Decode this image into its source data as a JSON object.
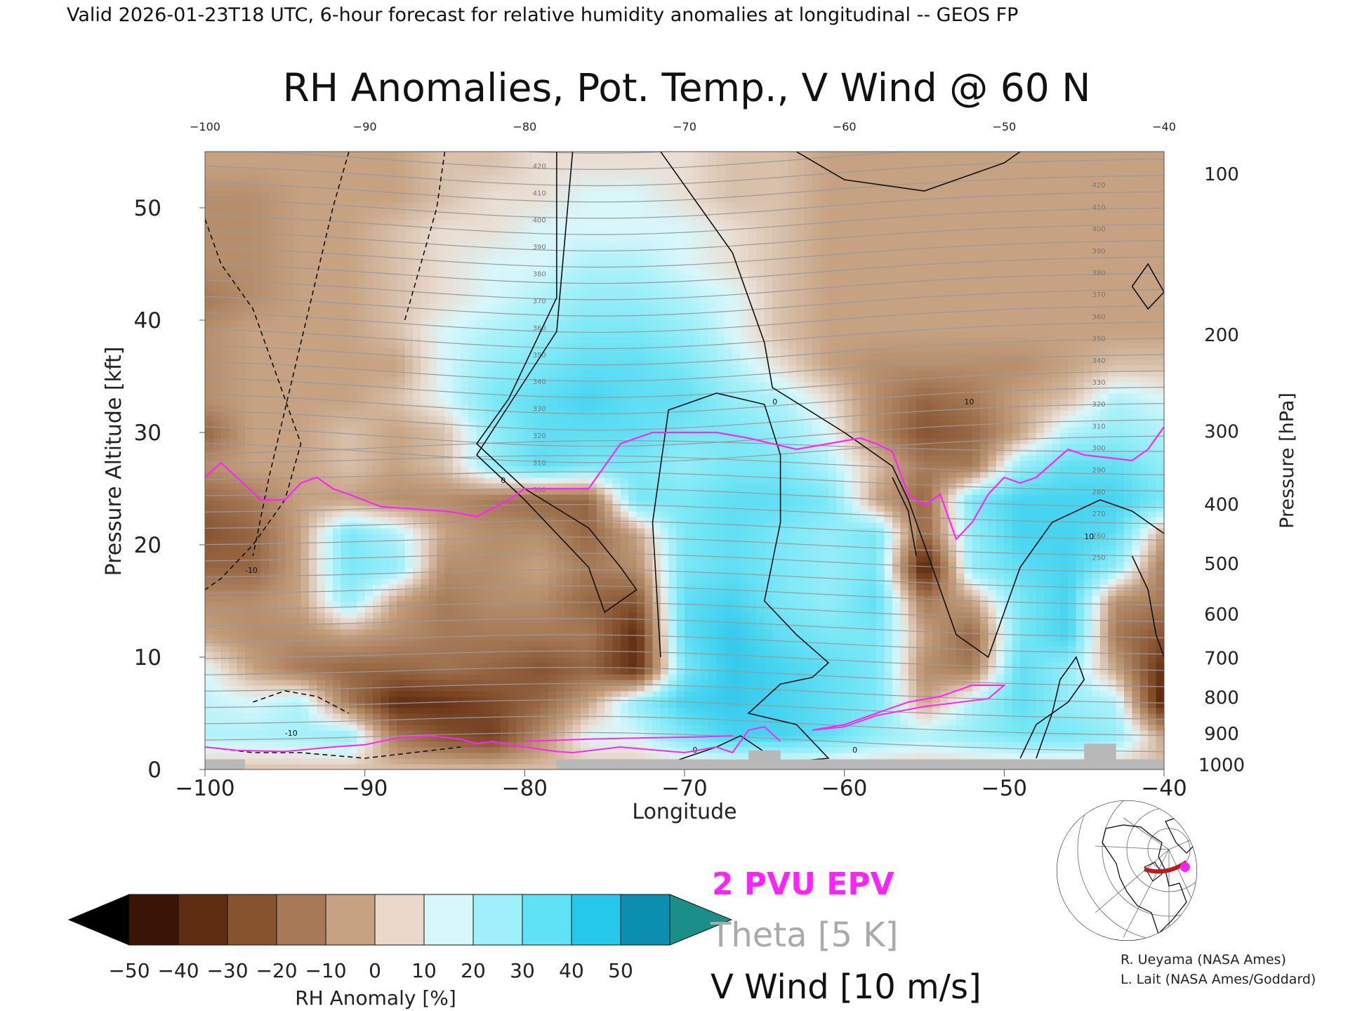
{
  "header": {
    "valid_line": "Valid 2026-01-23T18 UTC, 6-hour forecast for relative humidity anomalies at longitudinal -- GEOS FP"
  },
  "chart_data": {
    "type": "heatmap",
    "title": "RH Anomalies, Pot. Temp., V Wind @ 60 N",
    "xlabel": "Longitude",
    "ylabel_left": "Pressure Altitude [kft]",
    "ylabel_right": "Pressure [hPa]",
    "xlim": [
      -100,
      -40
    ],
    "ylim": [
      0,
      55
    ],
    "x_ticks": [
      "−100",
      "−90",
      "−80",
      "−70",
      "−60",
      "−50",
      "−40"
    ],
    "x_tick_values": [
      -100,
      -90,
      -80,
      -70,
      -60,
      -50,
      -40
    ],
    "x_top_ticks": [
      "−100",
      "−90",
      "−80",
      "−70",
      "−60",
      "−50",
      "−40"
    ],
    "y_ticks": [
      "0",
      "10",
      "20",
      "30",
      "40",
      "50"
    ],
    "y_tick_values": [
      0,
      10,
      20,
      30,
      40,
      50
    ],
    "pressure_ticks": [
      {
        "label": "100",
        "kft": 53.0
      },
      {
        "label": "200",
        "kft": 38.7
      },
      {
        "label": "300",
        "kft": 30.1
      },
      {
        "label": "400",
        "kft": 23.6
      },
      {
        "label": "500",
        "kft": 18.3
      },
      {
        "label": "600",
        "kft": 13.8
      },
      {
        "label": "700",
        "kft": 9.9
      },
      {
        "label": "800",
        "kft": 6.4
      },
      {
        "label": "900",
        "kft": 3.2
      },
      {
        "label": "1000",
        "kft": 0.4
      }
    ],
    "rh_anomaly_field": {
      "x": [
        -100,
        -97,
        -94,
        -91,
        -88,
        -85,
        -82,
        -79,
        -76,
        -73,
        -70,
        -67,
        -64,
        -61,
        -58,
        -55,
        -52,
        -49,
        -46,
        -43,
        -40
      ],
      "y": [
        0,
        3,
        6,
        9,
        12,
        15,
        18,
        21,
        24,
        27,
        30,
        33,
        36,
        39,
        42,
        45,
        48,
        51,
        54
      ],
      "values": [
        [
          -5,
          -5,
          -5,
          -5,
          -5,
          -5,
          -5,
          -5,
          -5,
          -5,
          -5,
          -5,
          -5,
          -5,
          -5,
          -5,
          -5,
          -5,
          -5,
          -5,
          -5
        ],
        [
          10,
          10,
          12,
          15,
          -20,
          -30,
          -35,
          -15,
          5,
          5,
          20,
          30,
          30,
          25,
          15,
          10,
          15,
          20,
          20,
          15,
          -10
        ],
        [
          8,
          5,
          10,
          -20,
          -40,
          -38,
          -32,
          -25,
          -10,
          15,
          30,
          35,
          30,
          25,
          20,
          -10,
          10,
          25,
          15,
          10,
          -45
        ],
        [
          5,
          -10,
          -20,
          -25,
          -25,
          -22,
          -25,
          -30,
          -25,
          -40,
          20,
          35,
          30,
          25,
          20,
          -15,
          -20,
          25,
          15,
          -10,
          -40
        ],
        [
          -10,
          -15,
          -15,
          -10,
          -15,
          -20,
          -20,
          -20,
          -20,
          -40,
          25,
          35,
          25,
          20,
          20,
          -10,
          -25,
          20,
          30,
          -20,
          -30
        ],
        [
          -15,
          -15,
          -10,
          15,
          -10,
          -20,
          -15,
          -15,
          -25,
          -30,
          25,
          30,
          20,
          15,
          25,
          -20,
          -10,
          20,
          30,
          -15,
          -20
        ],
        [
          -25,
          -25,
          -10,
          20,
          15,
          -15,
          -15,
          -10,
          -20,
          -15,
          20,
          25,
          20,
          15,
          20,
          -45,
          15,
          25,
          30,
          15,
          -20
        ],
        [
          -30,
          -25,
          -10,
          20,
          10,
          -10,
          -15,
          -15,
          -25,
          -10,
          20,
          25,
          20,
          15,
          20,
          -25,
          15,
          30,
          30,
          25,
          -10
        ],
        [
          -25,
          -20,
          -10,
          -10,
          -15,
          -15,
          -20,
          -25,
          -25,
          20,
          20,
          25,
          25,
          20,
          -10,
          -25,
          20,
          30,
          30,
          30,
          20
        ],
        [
          -15,
          -10,
          -10,
          -5,
          -10,
          -5,
          15,
          25,
          20,
          20,
          15,
          20,
          20,
          10,
          -5,
          -20,
          -20,
          15,
          25,
          25,
          15
        ],
        [
          -25,
          -10,
          -10,
          -5,
          -10,
          -5,
          15,
          25,
          25,
          25,
          20,
          20,
          15,
          5,
          -15,
          -30,
          -25,
          -10,
          10,
          15,
          10
        ],
        [
          -15,
          -10,
          -10,
          -10,
          -5,
          5,
          20,
          25,
          30,
          25,
          25,
          15,
          10,
          0,
          -15,
          -25,
          -20,
          -10,
          -5,
          10,
          5
        ],
        [
          -15,
          -10,
          -10,
          -10,
          -10,
          5,
          15,
          20,
          25,
          25,
          20,
          10,
          0,
          -10,
          -15,
          -15,
          -15,
          -15,
          -10,
          -5,
          -5
        ],
        [
          -15,
          -10,
          -10,
          -10,
          -5,
          5,
          10,
          15,
          20,
          20,
          15,
          5,
          -5,
          -10,
          -10,
          -10,
          -10,
          -10,
          -10,
          -10,
          -10
        ],
        [
          -20,
          -15,
          -10,
          -10,
          -5,
          0,
          5,
          10,
          15,
          15,
          10,
          5,
          -5,
          -10,
          -10,
          -10,
          -10,
          -10,
          -10,
          -10,
          -10
        ],
        [
          -15,
          -15,
          -10,
          -10,
          -5,
          0,
          5,
          5,
          10,
          10,
          5,
          0,
          -5,
          -10,
          -10,
          -10,
          -10,
          -10,
          -10,
          -10,
          -10
        ],
        [
          -15,
          -15,
          -10,
          -10,
          -5,
          0,
          0,
          5,
          5,
          5,
          5,
          0,
          -5,
          -10,
          -10,
          -10,
          -10,
          -10,
          -10,
          -10,
          -10
        ],
        [
          -15,
          -15,
          -10,
          -10,
          -10,
          -5,
          0,
          0,
          5,
          5,
          0,
          -5,
          -5,
          -10,
          -10,
          -10,
          -10,
          -10,
          -10,
          -10,
          -10
        ],
        [
          -10,
          -10,
          -10,
          -10,
          -10,
          -5,
          -5,
          0,
          0,
          0,
          0,
          -5,
          -5,
          -10,
          -10,
          -10,
          -10,
          -10,
          -10,
          -10,
          -10
        ]
      ]
    },
    "epv_2pvu_line": [
      [
        -100,
        26
      ],
      [
        -99,
        27.3
      ],
      [
        -98,
        26
      ],
      [
        -96.5,
        24
      ],
      [
        -95,
        24
      ],
      [
        -94,
        25.5
      ],
      [
        -93,
        26
      ],
      [
        -92,
        25
      ],
      [
        -91,
        24.5
      ],
      [
        -89,
        23.4
      ],
      [
        -87,
        23.2
      ],
      [
        -85,
        23
      ],
      [
        -84,
        22.8
      ],
      [
        -83,
        22.5
      ],
      [
        -81,
        24
      ],
      [
        -80,
        25
      ],
      [
        -78,
        25
      ],
      [
        -76,
        25
      ],
      [
        -74,
        29
      ],
      [
        -72,
        30
      ],
      [
        -68,
        30
      ],
      [
        -66,
        29.5
      ],
      [
        -63,
        28.5
      ],
      [
        -61,
        29
      ],
      [
        -59,
        29.5
      ],
      [
        -58,
        29
      ],
      [
        -57,
        28.3
      ],
      [
        -56,
        24.5
      ],
      [
        -55,
        23.5
      ],
      [
        -54,
        24.5
      ],
      [
        -53,
        20.5
      ],
      [
        -52,
        22
      ],
      [
        -51,
        24.5
      ],
      [
        -50,
        26
      ],
      [
        -49,
        25.5
      ],
      [
        -48,
        26
      ],
      [
        -46,
        28.5
      ],
      [
        -45,
        28
      ],
      [
        -42,
        27.5
      ],
      [
        -41,
        28.5
      ],
      [
        -40,
        30.5
      ]
    ],
    "epv_2pvu_low_lines": [
      [
        [
          -100,
          2
        ],
        [
          -98,
          1.7
        ],
        [
          -95,
          1.6
        ],
        [
          -92,
          2
        ],
        [
          -90,
          2.2
        ],
        [
          -88,
          2.8
        ],
        [
          -86,
          3
        ],
        [
          -84,
          2.7
        ],
        [
          -83,
          2.3
        ],
        [
          -82,
          2.5
        ],
        [
          -80,
          2
        ],
        [
          -78,
          1.6
        ],
        [
          -77,
          1.5
        ],
        [
          -74,
          2
        ],
        [
          -70,
          1.5
        ],
        [
          -68,
          2
        ],
        [
          -67,
          1.5
        ],
        [
          -66,
          3.5
        ],
        [
          -65,
          3.8
        ],
        [
          -64,
          2.5
        ]
      ],
      [
        [
          -80,
          2.5
        ],
        [
          -76,
          2.7
        ],
        [
          -73,
          2.8
        ],
        [
          -69,
          2.9
        ],
        [
          -67,
          3
        ]
      ],
      [
        [
          -62,
          3.5
        ],
        [
          -60,
          4
        ],
        [
          -58,
          5
        ],
        [
          -56,
          6
        ],
        [
          -54,
          6.5
        ],
        [
          -52,
          7.5
        ],
        [
          -50,
          7.5
        ],
        [
          -51,
          6.3
        ],
        [
          -55,
          5.6
        ],
        [
          -58,
          4.8
        ],
        [
          -60,
          3.8
        ],
        [
          -62,
          3.5
        ]
      ]
    ],
    "theta_labels": [
      "420",
      "410",
      "400",
      "390",
      "380",
      "370",
      "360",
      "350",
      "340",
      "330",
      "320",
      "310",
      "300",
      "290",
      "280",
      "270",
      "260",
      "250"
    ],
    "v_wind_labels": [
      "0",
      "10",
      "-10"
    ],
    "legend": {
      "epv": "2 PVU EPV",
      "theta": "Theta [5 K]",
      "vwind": "V Wind [10 m/s]",
      "epv_color": "#ff22ff",
      "theta_color": "#aaaaaa",
      "vwind_color": "#000000"
    },
    "colorbar": {
      "label": "RH Anomaly [%]",
      "ticks": [
        "−50",
        "−40",
        "−30",
        "−20",
        "−10",
        "0",
        "10",
        "20",
        "30",
        "40",
        "50"
      ],
      "colors": [
        "#3a1406",
        "#5e2c10",
        "#86532f",
        "#a67a56",
        "#c6a282",
        "#ead9cb",
        "#d8f7fb",
        "#9ff0fb",
        "#5fe2f5",
        "#25c8ea",
        "#0a8fb0"
      ],
      "low_color": "#000000",
      "high_color": "#1a8f88"
    },
    "terrain_color": "#b8b8b8"
  },
  "inset_map": {
    "name": "60 N cross-section location map",
    "track_color": "#c01818",
    "marker_color": "#ff22ff"
  },
  "credits": {
    "line1": "R. Ueyama (NASA Ames)",
    "line2": "L. Lait (NASA Ames/Goddard)"
  }
}
